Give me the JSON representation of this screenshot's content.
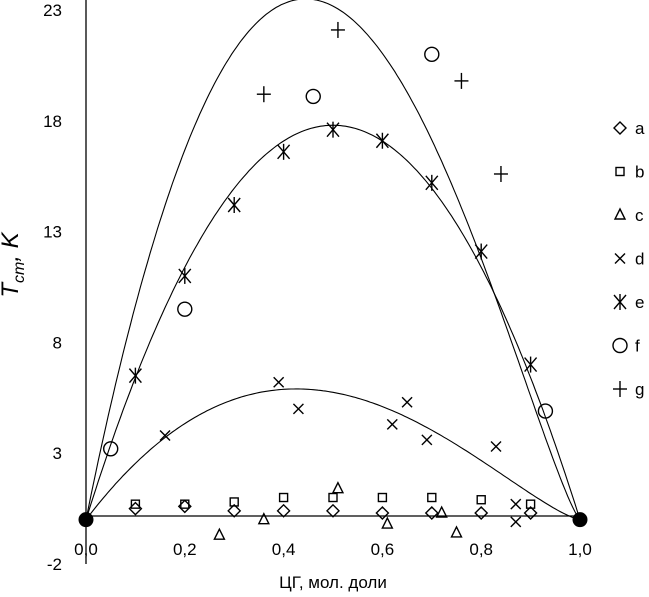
{
  "chart_data": {
    "type": "scatter",
    "xlabel": "ЦГ, мол. доли",
    "ylabel_main": "T",
    "ylabel_sub": "cm",
    "ylabel_unit": "K",
    "xlim": [
      0,
      1
    ],
    "ylim": [
      -2,
      23
    ],
    "x_ticks": [
      {
        "value": 0.0,
        "label": "0,0"
      },
      {
        "value": 0.2,
        "label": "0,2"
      },
      {
        "value": 0.4,
        "label": "0,4"
      },
      {
        "value": 0.6,
        "label": "0,6"
      },
      {
        "value": 0.8,
        "label": "0,8"
      },
      {
        "value": 1.0,
        "label": "1,0"
      }
    ],
    "y_ticks": [
      {
        "value": -2,
        "label": "-2"
      },
      {
        "value": 3,
        "label": "3"
      },
      {
        "value": 8,
        "label": "8"
      },
      {
        "value": 13,
        "label": "13"
      },
      {
        "value": 18,
        "label": "18"
      },
      {
        "value": 23,
        "label": "23"
      }
    ],
    "grid": false,
    "legend_position": "right",
    "series": [
      {
        "name": "a",
        "marker": "diamond",
        "points": [
          [
            0.1,
            0.5
          ],
          [
            0.2,
            0.6
          ],
          [
            0.3,
            0.4
          ],
          [
            0.4,
            0.4
          ],
          [
            0.5,
            0.4
          ],
          [
            0.6,
            0.3
          ],
          [
            0.7,
            0.3
          ],
          [
            0.8,
            0.3
          ],
          [
            0.9,
            0.3
          ]
        ]
      },
      {
        "name": "b",
        "marker": "square",
        "points": [
          [
            0.1,
            0.7
          ],
          [
            0.2,
            0.7
          ],
          [
            0.3,
            0.8
          ],
          [
            0.4,
            1.0
          ],
          [
            0.5,
            1.0
          ],
          [
            0.6,
            1.0
          ],
          [
            0.7,
            1.0
          ],
          [
            0.8,
            0.9
          ],
          [
            0.9,
            0.7
          ]
        ]
      },
      {
        "name": "c",
        "marker": "triangle",
        "points": [
          [
            0.27,
            -0.7
          ],
          [
            0.36,
            0
          ],
          [
            0.51,
            1.4
          ],
          [
            0.61,
            -0.2
          ],
          [
            0.72,
            0.3
          ],
          [
            0.75,
            -0.6
          ]
        ]
      },
      {
        "name": "d",
        "marker": "x",
        "points": [
          [
            0.16,
            3.8
          ],
          [
            0.39,
            6.2
          ],
          [
            0.43,
            5.0
          ],
          [
            0.62,
            4.3
          ],
          [
            0.65,
            5.3
          ],
          [
            0.69,
            3.6
          ],
          [
            0.83,
            3.3
          ],
          [
            0.87,
            0.7
          ],
          [
            0.87,
            -0.1
          ]
        ]
      },
      {
        "name": "e",
        "marker": "asterisk",
        "points": [
          [
            0.1,
            6.5
          ],
          [
            0.2,
            11.0
          ],
          [
            0.3,
            14.2
          ],
          [
            0.4,
            16.6
          ],
          [
            0.5,
            17.6
          ],
          [
            0.6,
            17.1
          ],
          [
            0.7,
            15.2
          ],
          [
            0.8,
            12.1
          ],
          [
            0.9,
            7.0
          ]
        ]
      },
      {
        "name": "f",
        "marker": "circle",
        "points": [
          [
            0.05,
            3.2
          ],
          [
            0.2,
            9.5
          ],
          [
            0.46,
            19.1
          ],
          [
            0.7,
            21.0
          ],
          [
            0.93,
            4.9
          ]
        ]
      },
      {
        "name": "g",
        "marker": "plus",
        "points": [
          [
            0.36,
            19.2
          ],
          [
            0.51,
            22.1
          ],
          [
            0.76,
            19.8
          ],
          [
            0.84,
            15.6
          ]
        ]
      }
    ],
    "endpoint_markers": [
      [
        0,
        0
      ],
      [
        1,
        0
      ]
    ],
    "fit_curves": [
      {
        "shape": "4*h*x*(1-x)^p",
        "peak": 23.5,
        "exponent": 1.25
      },
      {
        "shape": "4*h*x*(1-x)",
        "peak": 17.8
      },
      {
        "shape": "4*h*x*(1-x)^p",
        "peak": 5.9,
        "exponent": 1.35
      }
    ]
  }
}
